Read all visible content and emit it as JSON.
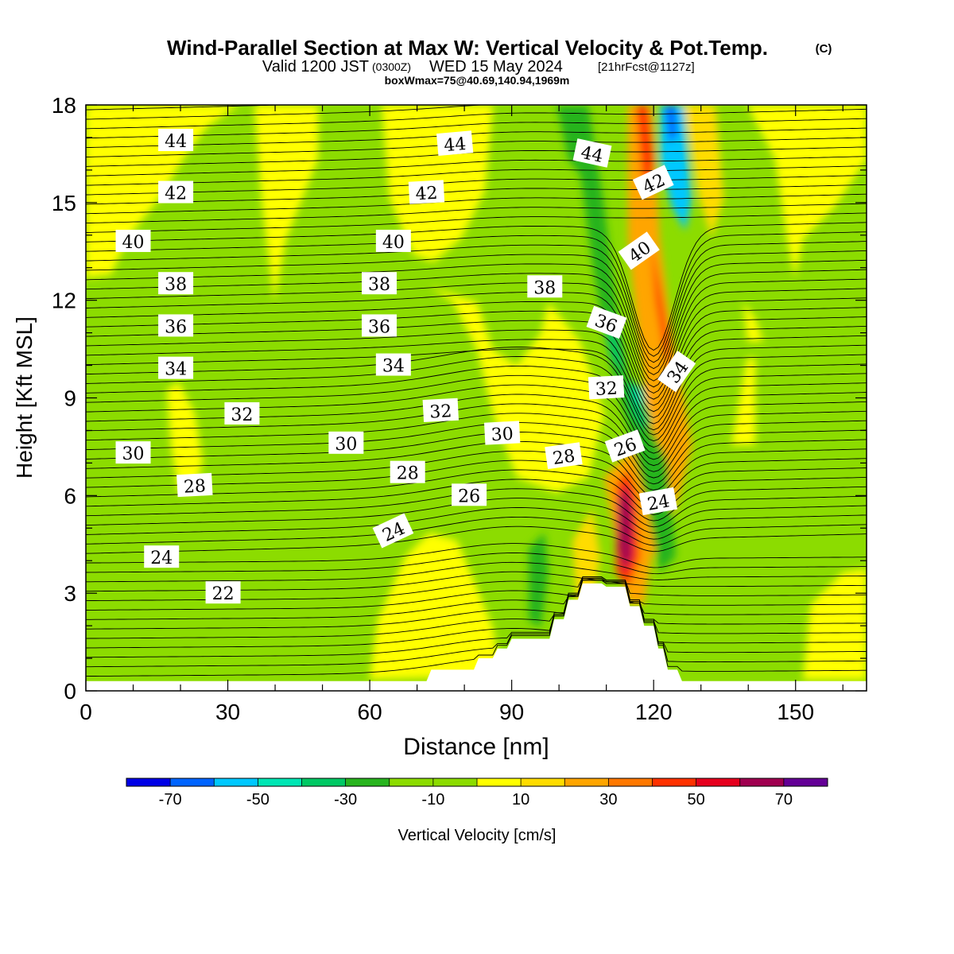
{
  "header": {
    "title": "Wind-Parallel Section at Max W: Vertical Velocity & Pot.Temp.",
    "copyright": "(C)",
    "valid_prefix": "Valid 1200 JST",
    "valid_zulu": "(0300Z)",
    "valid_date": "WED 15 May 2024",
    "forecast": "[21hrFcst@1127z]",
    "box_info": "boxWmax=75@40.69,140.94,1969m"
  },
  "chart_data": {
    "type": "heatmap",
    "xlabel": "Distance [nm]",
    "ylabel": "Height [Kft MSL]",
    "xlim": [
      0,
      165
    ],
    "ylim": [
      0,
      18
    ],
    "x_ticks": [
      "0",
      "30",
      "60",
      "90",
      "120",
      "150"
    ],
    "y_ticks": [
      "0",
      "3",
      "6",
      "9",
      "12",
      "15",
      "18"
    ],
    "colorbar": {
      "label": "Vertical Velocity [cm/s]",
      "tick_labels": [
        "-70",
        "-50",
        "-30",
        "-10",
        "10",
        "30",
        "50",
        "70"
      ],
      "bounds": [
        -80,
        -70,
        -60,
        -50,
        -40,
        -30,
        -20,
        -10,
        0,
        10,
        20,
        30,
        40,
        50,
        60,
        70,
        80
      ],
      "colors": [
        "#0000e6",
        "#0064ff",
        "#00c8ff",
        "#00e6b4",
        "#00c864",
        "#28b41e",
        "#8cdc00",
        "#8cdc00",
        "#ffff00",
        "#ffdc00",
        "#ffa500",
        "#ff7800",
        "#ff3200",
        "#e6001e",
        "#a00050",
        "#640096"
      ]
    },
    "terrain": [
      [
        0,
        0.3
      ],
      [
        45,
        0.3
      ],
      [
        60,
        0.3
      ],
      [
        72,
        0.3
      ],
      [
        73,
        0.65
      ],
      [
        82,
        0.65
      ],
      [
        83,
        1.0
      ],
      [
        86,
        1.0
      ],
      [
        87,
        1.3
      ],
      [
        89,
        1.3
      ],
      [
        90,
        1.6
      ],
      [
        98,
        1.6
      ],
      [
        99,
        2.2
      ],
      [
        101,
        2.2
      ],
      [
        102,
        2.8
      ],
      [
        104,
        2.8
      ],
      [
        105,
        3.3
      ],
      [
        109,
        3.3
      ],
      [
        110,
        3.2
      ],
      [
        114,
        3.2
      ],
      [
        115,
        2.6
      ],
      [
        117,
        2.6
      ],
      [
        118,
        2.0
      ],
      [
        120,
        2.0
      ],
      [
        121,
        1.3
      ],
      [
        122,
        1.3
      ],
      [
        123,
        0.65
      ],
      [
        125,
        0.65
      ],
      [
        126,
        0.3
      ],
      [
        165,
        0.3
      ]
    ],
    "contour_labels": [
      {
        "text": "44",
        "x": 19,
        "y": 16.9,
        "angle": 0
      },
      {
        "text": "44",
        "x": 78,
        "y": 16.8,
        "angle": -5
      },
      {
        "text": "44",
        "x": 107,
        "y": 16.5,
        "angle": 12
      },
      {
        "text": "42",
        "x": 19,
        "y": 15.3,
        "angle": 0
      },
      {
        "text": "42",
        "x": 72,
        "y": 15.3,
        "angle": -3
      },
      {
        "text": "42",
        "x": 120,
        "y": 15.6,
        "angle": -25
      },
      {
        "text": "40",
        "x": 10,
        "y": 13.8,
        "angle": 0
      },
      {
        "text": "40",
        "x": 65,
        "y": 13.8,
        "angle": 0
      },
      {
        "text": "40",
        "x": 117,
        "y": 13.5,
        "angle": -35
      },
      {
        "text": "38",
        "x": 19,
        "y": 12.5,
        "angle": 0
      },
      {
        "text": "38",
        "x": 62,
        "y": 12.5,
        "angle": 0
      },
      {
        "text": "38",
        "x": 97,
        "y": 12.4,
        "angle": 0
      },
      {
        "text": "36",
        "x": 19,
        "y": 11.2,
        "angle": 0
      },
      {
        "text": "36",
        "x": 62,
        "y": 11.2,
        "angle": 0
      },
      {
        "text": "36",
        "x": 110,
        "y": 11.3,
        "angle": 20
      },
      {
        "text": "34",
        "x": 19,
        "y": 9.9,
        "angle": 0
      },
      {
        "text": "34",
        "x": 65,
        "y": 10.0,
        "angle": 0
      },
      {
        "text": "34",
        "x": 125,
        "y": 9.8,
        "angle": -55
      },
      {
        "text": "32",
        "x": 33,
        "y": 8.5,
        "angle": 0
      },
      {
        "text": "32",
        "x": 75,
        "y": 8.6,
        "angle": -3
      },
      {
        "text": "32",
        "x": 110,
        "y": 9.3,
        "angle": -3
      },
      {
        "text": "30",
        "x": 10,
        "y": 7.3,
        "angle": 0
      },
      {
        "text": "30",
        "x": 55,
        "y": 7.6,
        "angle": 0
      },
      {
        "text": "30",
        "x": 88,
        "y": 7.9,
        "angle": -3
      },
      {
        "text": "28",
        "x": 23,
        "y": 6.3,
        "angle": -3
      },
      {
        "text": "28",
        "x": 68,
        "y": 6.7,
        "angle": 0
      },
      {
        "text": "28",
        "x": 101,
        "y": 7.2,
        "angle": -8
      },
      {
        "text": "26",
        "x": 81,
        "y": 6.0,
        "angle": 0
      },
      {
        "text": "26",
        "x": 114,
        "y": 7.5,
        "angle": -20
      },
      {
        "text": "24",
        "x": 16,
        "y": 4.1,
        "angle": 0
      },
      {
        "text": "24",
        "x": 65,
        "y": 4.9,
        "angle": -25
      },
      {
        "text": "24",
        "x": 121,
        "y": 5.8,
        "angle": -10
      },
      {
        "text": "22",
        "x": 29,
        "y": 3.0,
        "angle": 0
      }
    ]
  }
}
